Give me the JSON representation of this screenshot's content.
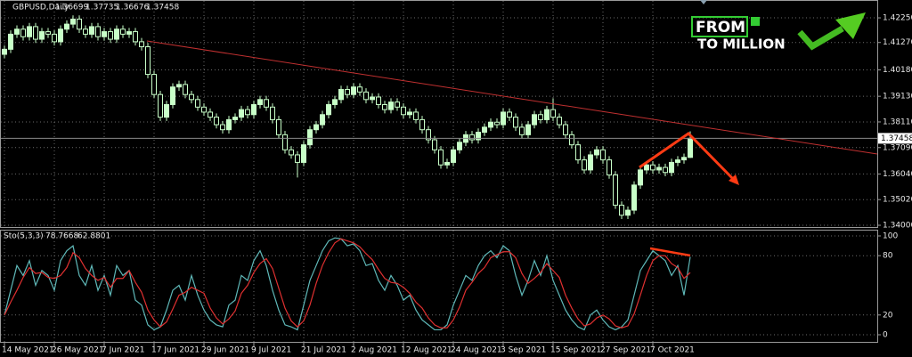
{
  "chart_data": [
    {
      "type": "candlestick",
      "title": "GBPUSD,Daily",
      "color": "#c8ffc8",
      "down_color": "#000000",
      "grid": true,
      "ylim": [
        1.3393,
        1.4296
      ],
      "yticks": [
        {
          "value": 1.4225,
          "label": "1.42250"
        },
        {
          "value": 1.4127,
          "label": "1.41270"
        },
        {
          "value": 1.4018,
          "label": "1.40180"
        },
        {
          "value": 1.3913,
          "label": "1.39130"
        },
        {
          "value": 1.3811,
          "label": "1.38110"
        },
        {
          "value": 1.3709,
          "label": "1.37090"
        },
        {
          "value": 1.3604,
          "label": "1.36040"
        },
        {
          "value": 1.3502,
          "label": "1.35020"
        },
        {
          "value": 1.34,
          "label": "1.34000"
        }
      ],
      "categories": [
        "14 May 2021",
        null,
        null,
        null,
        null,
        null,
        null,
        null,
        "26 May 2021",
        null,
        null,
        null,
        null,
        null,
        null,
        null,
        "7 Jun 2021",
        null,
        null,
        null,
        null,
        null,
        null,
        null,
        "17 Jun 2021",
        null,
        null,
        null,
        null,
        null,
        null,
        null,
        "29 Jun 2021",
        null,
        null,
        null,
        null,
        null,
        null,
        null,
        "9 Jul 2021",
        null,
        null,
        null,
        null,
        null,
        null,
        null,
        "21 Jul 2021",
        null,
        null,
        null,
        null,
        null,
        null,
        null,
        "2 Aug 2021",
        null,
        null,
        null,
        null,
        null,
        null,
        null,
        "12 Aug 2021",
        null,
        null,
        null,
        null,
        null,
        null,
        null,
        "24 Aug 2021",
        null,
        null,
        null,
        null,
        null,
        null,
        null,
        "3 Sep 2021",
        null,
        null,
        null,
        null,
        null,
        null,
        null,
        "15 Sep 2021",
        null,
        null,
        null,
        null,
        null,
        null,
        null,
        "27 Sep 2021",
        null,
        null,
        null,
        null,
        null,
        null,
        null,
        "7 Oct 2021",
        null,
        null,
        null,
        null,
        null,
        null
      ],
      "open": [
        1.408,
        1.41,
        1.416,
        1.418,
        1.415,
        1.419,
        1.414,
        1.417,
        1.416,
        1.413,
        1.418,
        1.42,
        1.422,
        1.418,
        1.416,
        1.419,
        1.415,
        1.417,
        1.414,
        1.418,
        1.416,
        1.417,
        1.413,
        1.411,
        1.4,
        1.392,
        1.383,
        1.388,
        1.395,
        1.396,
        1.392,
        1.39,
        1.387,
        1.385,
        1.383,
        1.38,
        1.378,
        1.382,
        1.383,
        1.386,
        1.384,
        1.388,
        1.39,
        1.387,
        1.382,
        1.376,
        1.37,
        1.368,
        1.365,
        1.372,
        1.378,
        1.38,
        1.384,
        1.388,
        1.39,
        1.394,
        1.392,
        1.395,
        1.393,
        1.39,
        1.391,
        1.388,
        1.386,
        1.389,
        1.387,
        1.384,
        1.385,
        1.382,
        1.378,
        1.374,
        1.37,
        1.364,
        1.365,
        1.37,
        1.373,
        1.376,
        1.374,
        1.377,
        1.379,
        1.381,
        1.38,
        1.385,
        1.383,
        1.379,
        1.376,
        1.38,
        1.384,
        1.382,
        1.386,
        1.383,
        1.38,
        1.376,
        1.372,
        1.366,
        1.362,
        1.368,
        1.37,
        1.366,
        1.36,
        1.348,
        1.344,
        1.346,
        1.356,
        1.362,
        1.364,
        1.362,
        1.363,
        1.361,
        1.365,
        1.366,
        1.36699
      ],
      "high": [
        1.4115,
        1.4175,
        1.4195,
        1.4195,
        1.4205,
        1.4205,
        1.4185,
        1.4185,
        1.4175,
        1.4195,
        1.4215,
        1.4235,
        1.4235,
        1.4195,
        1.4205,
        1.4205,
        1.4185,
        1.4185,
        1.4195,
        1.4195,
        1.4185,
        1.4185,
        1.4145,
        1.4125,
        1.4015,
        1.3935,
        1.3895,
        1.3965,
        1.3975,
        1.3975,
        1.3935,
        1.3915,
        1.3885,
        1.3865,
        1.3845,
        1.3815,
        1.3835,
        1.3845,
        1.3875,
        1.3875,
        1.3895,
        1.3915,
        1.3915,
        1.3885,
        1.3835,
        1.3775,
        1.3715,
        1.3695,
        1.3735,
        1.3795,
        1.3815,
        1.3855,
        1.3895,
        1.3915,
        1.3955,
        1.3955,
        1.3965,
        1.3965,
        1.3945,
        1.3925,
        1.3925,
        1.3895,
        1.3905,
        1.3905,
        1.3885,
        1.3865,
        1.3865,
        1.3835,
        1.3795,
        1.3755,
        1.3715,
        1.3665,
        1.3715,
        1.3745,
        1.3775,
        1.3775,
        1.3785,
        1.3805,
        1.3825,
        1.3825,
        1.3865,
        1.3865,
        1.3845,
        1.3805,
        1.3815,
        1.3855,
        1.3855,
        1.3875,
        1.3905,
        1.3845,
        1.3815,
        1.3775,
        1.3735,
        1.3675,
        1.3695,
        1.3715,
        1.3715,
        1.3675,
        1.3615,
        1.3495,
        1.3475,
        1.3575,
        1.3635,
        1.3655,
        1.3655,
        1.3645,
        1.3645,
        1.3665,
        1.3675,
        1.3685,
        1.37735
      ],
      "low": [
        1.4065,
        1.4085,
        1.4145,
        1.4135,
        1.4135,
        1.4125,
        1.4125,
        1.4145,
        1.4115,
        1.4115,
        1.4165,
        1.4185,
        1.4165,
        1.4145,
        1.4145,
        1.4135,
        1.4135,
        1.4125,
        1.4125,
        1.4145,
        1.4145,
        1.4115,
        1.4095,
        1.3985,
        1.3905,
        1.3815,
        1.3815,
        1.3865,
        1.3935,
        1.3905,
        1.3885,
        1.3855,
        1.3835,
        1.3815,
        1.3785,
        1.3765,
        1.3765,
        1.3805,
        1.3815,
        1.3825,
        1.3825,
        1.3865,
        1.3855,
        1.3805,
        1.3745,
        1.3685,
        1.3665,
        1.359,
        1.3635,
        1.3705,
        1.3765,
        1.3785,
        1.3825,
        1.3865,
        1.3885,
        1.3905,
        1.3905,
        1.3915,
        1.3885,
        1.3885,
        1.3865,
        1.3845,
        1.3845,
        1.3855,
        1.3825,
        1.3825,
        1.3805,
        1.3765,
        1.3725,
        1.3685,
        1.3625,
        1.3625,
        1.3635,
        1.3685,
        1.3715,
        1.3725,
        1.3725,
        1.3755,
        1.3775,
        1.3785,
        1.3785,
        1.3815,
        1.3775,
        1.3745,
        1.3745,
        1.3785,
        1.3805,
        1.3805,
        1.3815,
        1.3785,
        1.3745,
        1.3705,
        1.3645,
        1.3605,
        1.3605,
        1.3665,
        1.3645,
        1.3585,
        1.3465,
        1.3425,
        1.3425,
        1.3445,
        1.3545,
        1.3605,
        1.3605,
        1.3605,
        1.3595,
        1.3595,
        1.3635,
        1.3645,
        1.36676
      ],
      "close": [
        1.41,
        1.416,
        1.418,
        1.415,
        1.419,
        1.414,
        1.417,
        1.416,
        1.413,
        1.418,
        1.42,
        1.422,
        1.418,
        1.416,
        1.419,
        1.415,
        1.417,
        1.414,
        1.418,
        1.416,
        1.417,
        1.413,
        1.411,
        1.4,
        1.392,
        1.383,
        1.388,
        1.395,
        1.396,
        1.392,
        1.39,
        1.387,
        1.385,
        1.383,
        1.38,
        1.378,
        1.382,
        1.383,
        1.386,
        1.384,
        1.388,
        1.39,
        1.387,
        1.382,
        1.376,
        1.37,
        1.368,
        1.365,
        1.372,
        1.378,
        1.38,
        1.384,
        1.388,
        1.39,
        1.394,
        1.392,
        1.395,
        1.393,
        1.39,
        1.391,
        1.388,
        1.386,
        1.389,
        1.387,
        1.384,
        1.385,
        1.382,
        1.378,
        1.374,
        1.37,
        1.364,
        1.365,
        1.37,
        1.373,
        1.376,
        1.374,
        1.377,
        1.379,
        1.381,
        1.38,
        1.385,
        1.383,
        1.379,
        1.376,
        1.38,
        1.384,
        1.382,
        1.386,
        1.383,
        1.38,
        1.376,
        1.372,
        1.366,
        1.362,
        1.368,
        1.37,
        1.366,
        1.36,
        1.348,
        1.344,
        1.346,
        1.356,
        1.362,
        1.364,
        1.362,
        1.363,
        1.361,
        1.365,
        1.366,
        1.367,
        1.37458
      ]
    },
    {
      "type": "line",
      "title": "Sto(5,3,3)",
      "grid": true,
      "ylim": [
        -7.2,
        106.3
      ],
      "yticks": [
        100,
        80,
        20,
        0
      ],
      "series": [
        {
          "color": "#5fb8b8",
          "values": [
            20,
            45,
            70,
            60,
            75,
            50,
            65,
            60,
            45,
            75,
            85,
            90,
            60,
            50,
            70,
            45,
            60,
            40,
            70,
            60,
            65,
            35,
            30,
            10,
            5,
            8,
            25,
            45,
            50,
            35,
            60,
            40,
            25,
            15,
            10,
            8,
            30,
            35,
            60,
            55,
            75,
            85,
            70,
            45,
            25,
            10,
            8,
            5,
            30,
            55,
            70,
            85,
            95,
            98,
            97,
            90,
            92,
            85,
            70,
            72,
            55,
            45,
            60,
            50,
            35,
            40,
            25,
            15,
            10,
            5,
            5,
            10,
            30,
            45,
            60,
            55,
            70,
            80,
            85,
            78,
            90,
            85,
            60,
            40,
            55,
            75,
            60,
            80,
            55,
            40,
            25,
            15,
            8,
            5,
            20,
            25,
            15,
            8,
            5,
            8,
            15,
            40,
            65,
            75,
            85,
            80,
            75,
            60,
            70,
            40,
            78.7668
          ]
        },
        {
          "color": "#e03030",
          "values": [
            20,
            33,
            45,
            58,
            68,
            62,
            63,
            58,
            57,
            60,
            68,
            83,
            78,
            67,
            60,
            55,
            58,
            48,
            57,
            57,
            65,
            53,
            43,
            25,
            15,
            8,
            13,
            26,
            40,
            43,
            48,
            45,
            42,
            27,
            17,
            11,
            16,
            24,
            42,
            50,
            63,
            72,
            77,
            67,
            47,
            27,
            14,
            8,
            14,
            30,
            52,
            70,
            83,
            93,
            97,
            95,
            93,
            89,
            82,
            76,
            66,
            57,
            53,
            52,
            48,
            42,
            33,
            27,
            17,
            10,
            7,
            7,
            15,
            28,
            45,
            53,
            62,
            68,
            78,
            81,
            84,
            84,
            78,
            62,
            52,
            57,
            63,
            72,
            65,
            58,
            40,
            27,
            16,
            9,
            11,
            17,
            20,
            16,
            9,
            7,
            9,
            21,
            40,
            60,
            75,
            80,
            80,
            72,
            68,
            57,
            62.8801
          ]
        }
      ]
    }
  ],
  "logo": {
    "line1": "FROM",
    "line2": "TO MILLION"
  }
}
